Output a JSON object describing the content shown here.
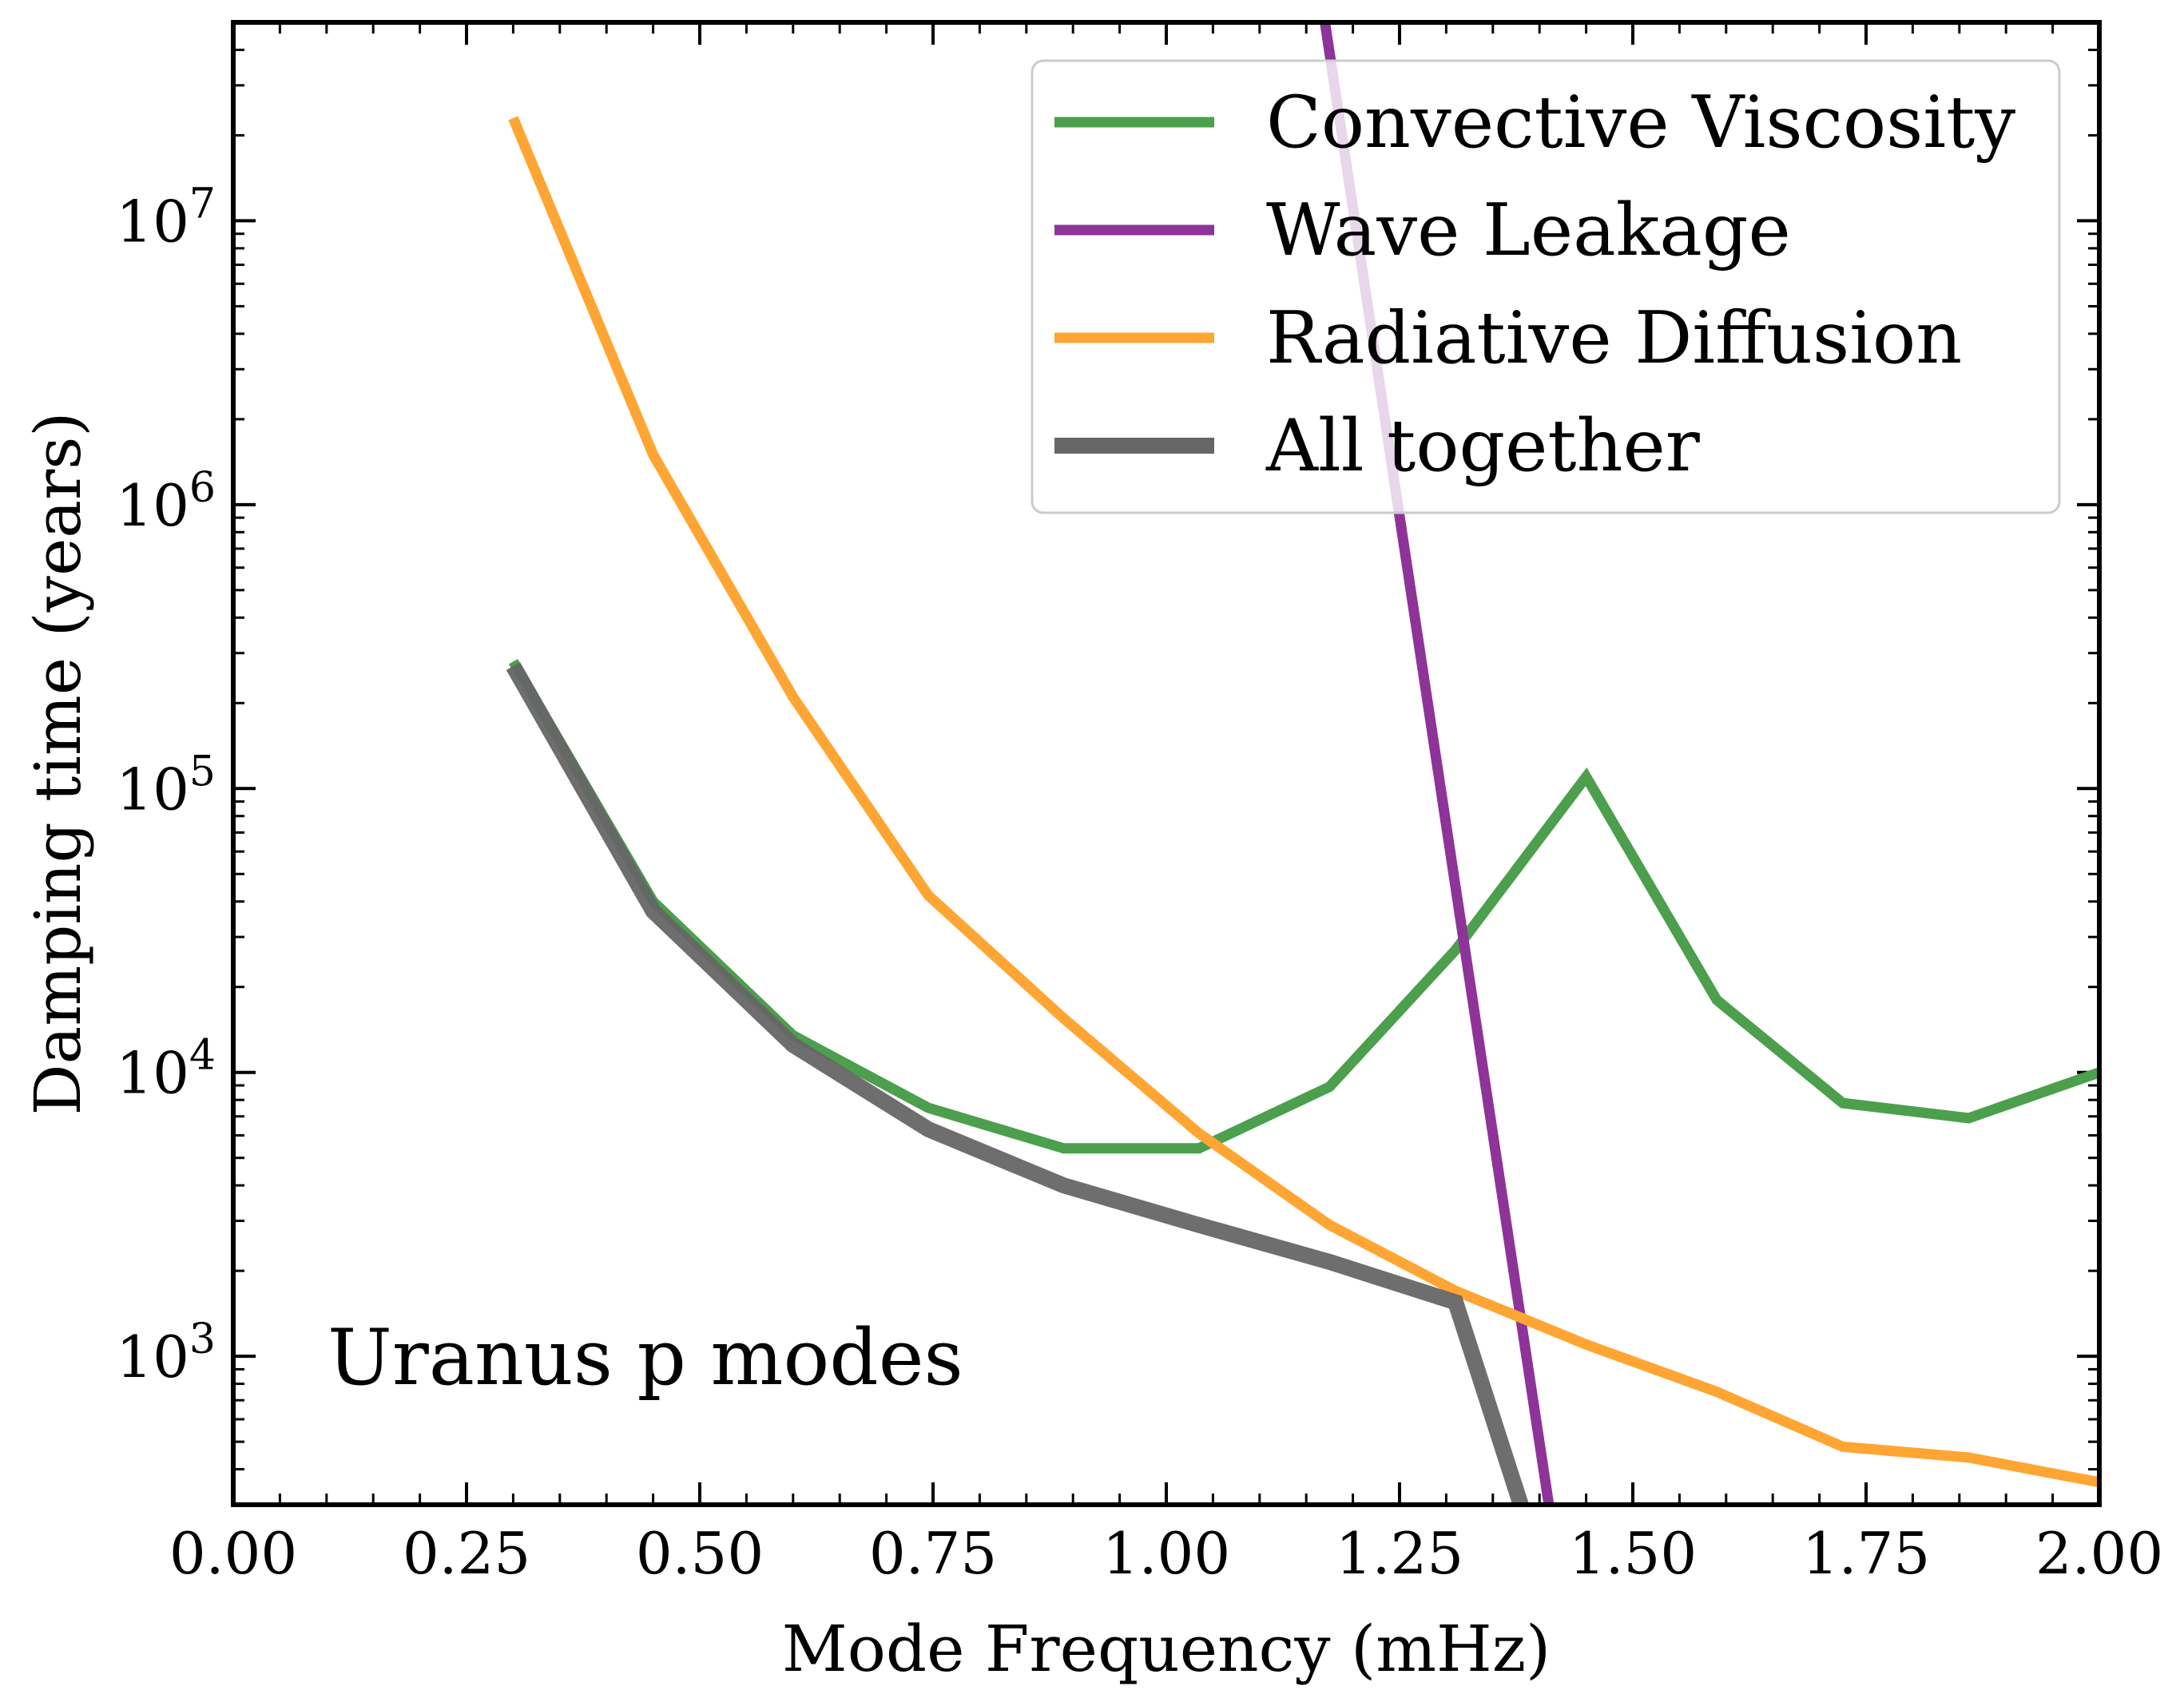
{
  "chart_data": {
    "type": "line",
    "title": "",
    "xlabel": "Mode Frequency (mHz)",
    "ylabel": "Damping time (years)",
    "xlim": [
      0.0,
      2.0
    ],
    "ylim": [
      300,
      50000000
    ],
    "yscale": "log",
    "x_ticks": [
      0.0,
      0.25,
      0.5,
      0.75,
      1.0,
      1.25,
      1.5,
      1.75,
      2.0
    ],
    "x_tick_labels": [
      "0.00",
      "0.25",
      "0.50",
      "0.75",
      "1.00",
      "1.25",
      "1.50",
      "1.75",
      "2.00"
    ],
    "y_ticks": [
      {
        "value": 1000,
        "base": "10",
        "exp": "3"
      },
      {
        "value": 10000,
        "base": "10",
        "exp": "4"
      },
      {
        "value": 100000,
        "base": "10",
        "exp": "5"
      },
      {
        "value": 1000000,
        "base": "10",
        "exp": "6"
      },
      {
        "value": 10000000,
        "base": "10",
        "exp": "7"
      }
    ],
    "annotation": "Uranus p modes",
    "legend_position": "top-right",
    "series": [
      {
        "name": "Convective Viscosity",
        "color": "#4c9f4c",
        "x": [
          0.3,
          0.45,
          0.6,
          0.745,
          0.89,
          1.035,
          1.175,
          1.31,
          1.45,
          1.59,
          1.725,
          1.86,
          2.0
        ],
        "y": [
          280000,
          40000,
          13500,
          7500,
          5400,
          5400,
          8900,
          27000,
          110000,
          18000,
          7800,
          6900,
          10000
        ]
      },
      {
        "name": "Wave Leakage",
        "color": "#8e3398",
        "x": [
          1.17,
          1.41
        ],
        "y": [
          50000000,
          300
        ]
      },
      {
        "name": "Radiative Diffusion",
        "color": "#ffa533",
        "x": [
          0.3,
          0.45,
          0.6,
          0.745,
          0.89,
          1.035,
          1.175,
          1.31,
          1.45,
          1.59,
          1.725,
          1.86,
          2.0
        ],
        "y": [
          23000000,
          1500000,
          210000,
          42000,
          15500,
          6100,
          2900,
          1700,
          1100,
          750,
          480,
          440,
          360
        ]
      },
      {
        "name": "All together",
        "color": "#666666",
        "x": [
          0.3,
          0.45,
          0.6,
          0.745,
          0.89,
          1.035,
          1.175,
          1.31,
          1.38
        ],
        "y": [
          270000,
          37000,
          12500,
          6300,
          4000,
          2900,
          2150,
          1550,
          300
        ]
      }
    ]
  }
}
